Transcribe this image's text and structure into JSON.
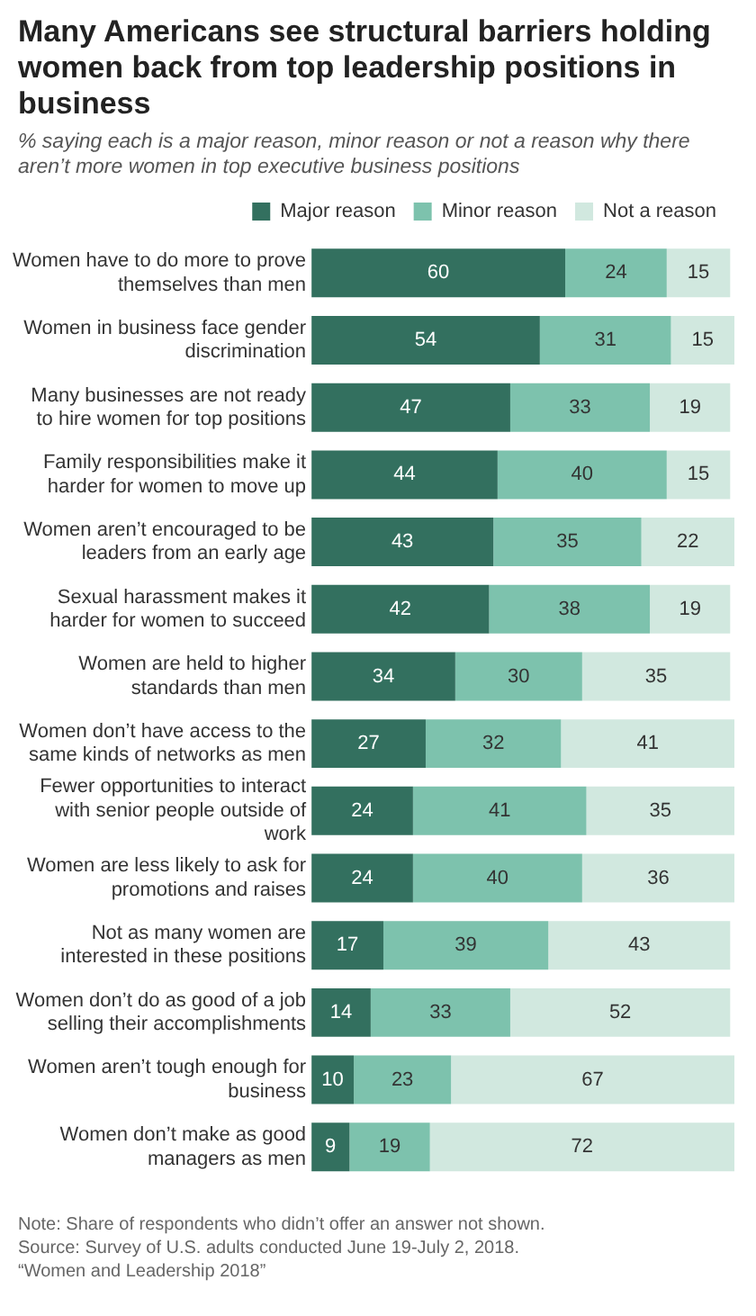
{
  "chart_data": {
    "type": "bar",
    "orientation": "horizontal",
    "stacked": true,
    "title": "Many Americans see structural barriers holding women back from top leadership positions in business",
    "subtitle": "% saying each is a major reason, minor reason or not a reason why there aren’t more women in top executive business positions",
    "categories": [
      "Women have to do more to prove themselves than men",
      "Women in business face gender discrimination",
      "Many businesses are not ready to hire women for top positions",
      "Family responsibilities make it harder for women to move up",
      "Women aren’t encouraged to be leaders from an early age",
      "Sexual harassment makes it harder for women to succeed",
      "Women are held to higher standards than men",
      "Women don’t have access to the same kinds of networks as men",
      "Fewer opportunities to interact with senior people outside of work",
      "Women are less likely to ask for promotions and raises",
      "Not as many women are interested in these positions",
      "Women don’t do as good of a job selling their accomplishments",
      "Women aren’t tough enough for business",
      "Women don’t make as good managers as men"
    ],
    "series": [
      {
        "name": "Major reason",
        "color": "#33705f",
        "values": [
          60,
          54,
          47,
          44,
          43,
          42,
          34,
          27,
          24,
          24,
          17,
          14,
          10,
          9
        ]
      },
      {
        "name": "Minor reason",
        "color": "#7dc2ad",
        "values": [
          24,
          31,
          33,
          40,
          35,
          38,
          30,
          32,
          41,
          40,
          39,
          33,
          23,
          19
        ]
      },
      {
        "name": "Not a reason",
        "color": "#d1e8df",
        "values": [
          15,
          15,
          19,
          15,
          22,
          19,
          35,
          41,
          35,
          36,
          43,
          52,
          67,
          72
        ]
      }
    ],
    "xlim": [
      0,
      100
    ],
    "tick_labels": "y",
    "grid": false,
    "legend": "top",
    "data_labels": true,
    "annotations": [
      "Note: Share of respondents who didn’t offer an answer not shown.",
      "Source: Survey of U.S. adults conducted June 19-July 2, 2018.",
      "“Women and Leadership 2018”"
    ]
  }
}
